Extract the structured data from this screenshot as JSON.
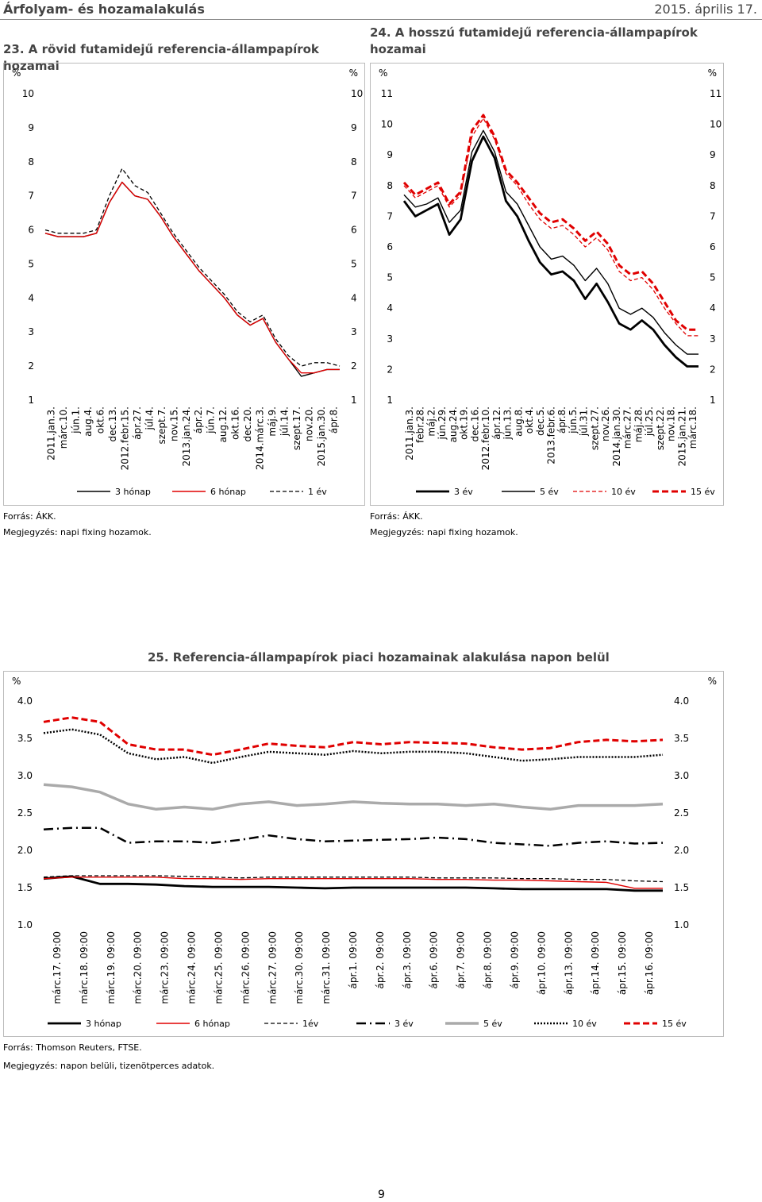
{
  "header": {
    "left": "Árfolyam- és hozamalakulás",
    "right": "2015. április 17."
  },
  "page_number": "9",
  "notes": {
    "c23_source": "Forrás: ÁKK.",
    "c23_note": "Megjegyzés: napi fixing hozamok.",
    "c24_source": "Forrás: ÁKK.",
    "c24_note": "Megjegyzés: napi fixing hozamok.",
    "c25_source": "Forrás: Thomson Reuters, FTSE.",
    "c25_note": "Megjegyzés: napon belüli, tizenötperces adatok."
  },
  "chart_data": [
    {
      "id": "c23",
      "type": "line",
      "title": "23. A rövid futamidejű referencia-állampapírok hozamai",
      "yunit_left": "%",
      "yunit_right": "%",
      "ylim": [
        1,
        10
      ],
      "yticks": [
        "1",
        "2",
        "3",
        "4",
        "5",
        "6",
        "7",
        "8",
        "9",
        "10"
      ],
      "xticks": [
        "2011.jan.3.",
        "márc.10.",
        "jún.1.",
        "aug.4.",
        "okt.6.",
        "dec.13.",
        "2012.febr.15.",
        "ápr.27.",
        "júl.4.",
        "szept.7.",
        "nov.15.",
        "2013.jan.24.",
        "ápr.2.",
        "jún.7.",
        "aug.12.",
        "okt.16.",
        "dec.20.",
        "2014.márc.3.",
        "máj.9.",
        "júl.14.",
        "szept.17.",
        "nov.20.",
        "2015.jan.30.",
        "ápr.8."
      ],
      "legend": [
        "3 hónap",
        "6 hónap",
        "1 év"
      ],
      "series": [
        {
          "name": "3 hónap",
          "color": "#000000",
          "style": "solid",
          "values": [
            5.9,
            5.8,
            5.8,
            5.8,
            5.9,
            6.8,
            7.4,
            7.0,
            6.9,
            6.4,
            5.8,
            5.3,
            4.8,
            4.4,
            4.0,
            3.5,
            3.2,
            3.4,
            2.7,
            2.2,
            1.7,
            1.8,
            1.9,
            1.9
          ]
        },
        {
          "name": "6 hónap",
          "color": "#e00000",
          "style": "solid",
          "values": [
            5.9,
            5.8,
            5.8,
            5.8,
            5.9,
            6.8,
            7.4,
            7.0,
            6.9,
            6.4,
            5.8,
            5.3,
            4.8,
            4.4,
            4.0,
            3.5,
            3.2,
            3.4,
            2.7,
            2.2,
            1.8,
            1.8,
            1.9,
            1.9
          ]
        },
        {
          "name": "1 év",
          "color": "#000000",
          "style": "dashed",
          "values": [
            6.0,
            5.9,
            5.9,
            5.9,
            6.0,
            7.0,
            7.8,
            7.3,
            7.1,
            6.5,
            5.9,
            5.4,
            4.9,
            4.5,
            4.1,
            3.6,
            3.3,
            3.5,
            2.8,
            2.3,
            2.0,
            2.1,
            2.1,
            2.0
          ]
        }
      ]
    },
    {
      "id": "c24",
      "type": "line",
      "title": "24. A hosszú futamidejű referencia-állampapírok hozamai",
      "yunit_left": "%",
      "yunit_right": "%",
      "ylim": [
        1,
        11
      ],
      "yticks": [
        "1",
        "2",
        "3",
        "4",
        "5",
        "6",
        "7",
        "8",
        "9",
        "10",
        "11"
      ],
      "xticks": [
        "2011.jan.3.",
        "febr.28.",
        "máj.2.",
        "jún.29.",
        "aug.24.",
        "okt.19.",
        "dec.16.",
        "2012.febr.10.",
        "ápr.12.",
        "jún.13.",
        "aug.8.",
        "okt.4.",
        "dec.5.",
        "2013.febr.6.",
        "ápr.8.",
        "jún.5.",
        "júl.31.",
        "szept.27.",
        "nov.26.",
        "2014.jan.30.",
        "márc.27.",
        "máj.28.",
        "júl.25.",
        "szept.22.",
        "nov.18.",
        "2015.jan.21.",
        "márc.18."
      ],
      "legend": [
        "3 év",
        "5 év",
        "10 év",
        "15 év"
      ],
      "series": [
        {
          "name": "3 év",
          "color": "#000000",
          "style": "thick",
          "values": [
            7.5,
            7.0,
            7.2,
            7.4,
            6.4,
            6.9,
            8.8,
            9.6,
            8.9,
            7.5,
            7.0,
            6.2,
            5.5,
            5.1,
            5.2,
            4.9,
            4.3,
            4.8,
            4.2,
            3.5,
            3.3,
            3.6,
            3.3,
            2.8,
            2.4,
            2.1,
            2.1
          ]
        },
        {
          "name": "5 év",
          "color": "#000000",
          "style": "solid",
          "values": [
            7.7,
            7.3,
            7.4,
            7.6,
            6.8,
            7.2,
            9.1,
            9.8,
            9.1,
            7.8,
            7.4,
            6.7,
            6.0,
            5.6,
            5.7,
            5.4,
            4.9,
            5.3,
            4.8,
            4.0,
            3.8,
            4.0,
            3.7,
            3.2,
            2.8,
            2.5,
            2.5
          ]
        },
        {
          "name": "10 év",
          "color": "#e00000",
          "style": "dashed",
          "values": [
            8.0,
            7.6,
            7.8,
            8.0,
            7.3,
            7.7,
            9.6,
            10.2,
            9.5,
            8.4,
            8.0,
            7.4,
            6.9,
            6.6,
            6.7,
            6.4,
            6.0,
            6.3,
            5.9,
            5.2,
            4.9,
            5.0,
            4.6,
            4.0,
            3.5,
            3.1,
            3.1
          ]
        },
        {
          "name": "15 év",
          "color": "#e00000",
          "style": "thickdashed",
          "values": [
            8.1,
            7.7,
            7.9,
            8.1,
            7.4,
            7.8,
            9.8,
            10.3,
            9.6,
            8.5,
            8.1,
            7.6,
            7.1,
            6.8,
            6.9,
            6.6,
            6.2,
            6.5,
            6.1,
            5.4,
            5.1,
            5.2,
            4.8,
            4.2,
            3.6,
            3.3,
            3.3
          ]
        }
      ]
    },
    {
      "id": "c25",
      "type": "line",
      "title": "25. Referencia-állampapírok piaci hozamainak alakulása napon belül",
      "yunit_left": "%",
      "yunit_right": "%",
      "ylim": [
        1.0,
        4.0
      ],
      "yticks": [
        "1.0",
        "1.5",
        "2.0",
        "2.5",
        "3.0",
        "3.5",
        "4.0"
      ],
      "xticks": [
        "márc.17. 09:00",
        "márc.18. 09:00",
        "márc.19. 09:00",
        "márc.20. 09:00",
        "márc.23. 09:00",
        "márc.24. 09:00",
        "márc.25. 09:00",
        "márc.26. 09:00",
        "márc.27. 09:00",
        "márc.30. 09:00",
        "márc.31. 09:00",
        "ápr.1. 09:00",
        "ápr.2. 09:00",
        "ápr.3. 09:00",
        "ápr.6. 09:00",
        "ápr.7. 09:00",
        "ápr.8. 09:00",
        "ápr.9. 09:00",
        "ápr.10. 09:00",
        "ápr.13. 09:00",
        "ápr.14. 09:00",
        "ápr.15. 09:00",
        "ápr.16. 09:00"
      ],
      "legend": [
        "3 hónap",
        "6 hónap",
        "1év",
        "3 év",
        "5 év",
        "10 év",
        "15 év"
      ],
      "series": [
        {
          "name": "3 hónap",
          "color": "#000000",
          "style": "thick",
          "values": [
            1.62,
            1.65,
            1.55,
            1.55,
            1.54,
            1.52,
            1.51,
            1.51,
            1.51,
            1.5,
            1.49,
            1.5,
            1.5,
            1.5,
            1.5,
            1.5,
            1.49,
            1.48,
            1.48,
            1.48,
            1.48,
            1.46,
            1.46
          ]
        },
        {
          "name": "6 hónap",
          "color": "#e00000",
          "style": "solid",
          "values": [
            1.62,
            1.64,
            1.64,
            1.64,
            1.64,
            1.62,
            1.62,
            1.61,
            1.62,
            1.62,
            1.62,
            1.62,
            1.62,
            1.62,
            1.61,
            1.61,
            1.6,
            1.6,
            1.59,
            1.58,
            1.57,
            1.49,
            1.49
          ]
        },
        {
          "name": "1év",
          "color": "#000000",
          "style": "dashed",
          "values": [
            1.64,
            1.66,
            1.66,
            1.66,
            1.66,
            1.65,
            1.64,
            1.63,
            1.64,
            1.64,
            1.64,
            1.64,
            1.64,
            1.64,
            1.63,
            1.63,
            1.63,
            1.62,
            1.62,
            1.61,
            1.61,
            1.59,
            1.58
          ]
        },
        {
          "name": "3 év",
          "color": "#000000",
          "style": "dashdot",
          "values": [
            2.28,
            2.3,
            2.3,
            2.1,
            2.12,
            2.12,
            2.1,
            2.14,
            2.2,
            2.15,
            2.12,
            2.13,
            2.14,
            2.15,
            2.17,
            2.15,
            2.1,
            2.08,
            2.06,
            2.1,
            2.12,
            2.09,
            2.1
          ]
        },
        {
          "name": "5 év",
          "color": "#aaaaaa",
          "style": "thickgray",
          "values": [
            2.88,
            2.85,
            2.78,
            2.62,
            2.55,
            2.58,
            2.55,
            2.62,
            2.65,
            2.6,
            2.62,
            2.65,
            2.63,
            2.62,
            2.62,
            2.6,
            2.62,
            2.58,
            2.55,
            2.6,
            2.6,
            2.6,
            2.62
          ]
        },
        {
          "name": "10 év",
          "color": "#000000",
          "style": "dotted",
          "values": [
            3.57,
            3.62,
            3.55,
            3.3,
            3.22,
            3.25,
            3.17,
            3.25,
            3.32,
            3.3,
            3.28,
            3.33,
            3.3,
            3.32,
            3.32,
            3.3,
            3.25,
            3.2,
            3.22,
            3.25,
            3.25,
            3.25,
            3.28
          ]
        },
        {
          "name": "15 év",
          "color": "#e00000",
          "style": "thickdashed",
          "values": [
            3.72,
            3.78,
            3.72,
            3.42,
            3.35,
            3.35,
            3.28,
            3.35,
            3.43,
            3.4,
            3.38,
            3.45,
            3.42,
            3.45,
            3.44,
            3.43,
            3.38,
            3.35,
            3.37,
            3.45,
            3.48,
            3.46,
            3.48
          ]
        }
      ]
    }
  ]
}
